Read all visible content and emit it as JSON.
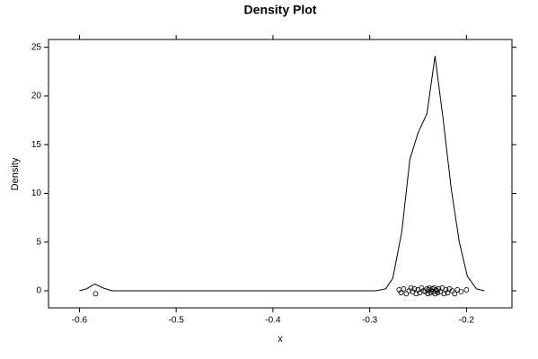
{
  "chart_data": {
    "type": "line",
    "title": "Density Plot",
    "x_label": "x",
    "y_label": "Density",
    "x": [
      -0.6,
      -0.5926,
      -0.5842,
      -0.5759,
      -0.5666,
      -0.2937,
      -0.2835,
      -0.2761,
      -0.2668,
      -0.2585,
      -0.2501,
      -0.2408,
      -0.2325,
      -0.2241,
      -0.2158,
      -0.2074,
      -0.1991,
      -0.1898,
      -0.1814
    ],
    "values": [
      0,
      0.2,
      0.7,
      0.3,
      0,
      0,
      0.2,
      1.3,
      6.1,
      13.5,
      16.2,
      18.2,
      24.1,
      17.6,
      10.5,
      5.0,
      1.5,
      0.2,
      0
    ],
    "color": "#000000",
    "points": {
      "type": "scatter",
      "x": [
        -0.5833,
        -0.2696,
        -0.2677,
        -0.265,
        -0.2622,
        -0.2594,
        -0.2575,
        -0.2557,
        -0.2538,
        -0.252,
        -0.2501,
        -0.2483,
        -0.2464,
        -0.2445,
        -0.2427,
        -0.2408,
        -0.2399,
        -0.239,
        -0.2381,
        -0.2371,
        -0.2362,
        -0.2353,
        -0.2343,
        -0.2334,
        -0.2325,
        -0.2316,
        -0.2306,
        -0.2297,
        -0.2288,
        -0.2269,
        -0.2251,
        -0.2232,
        -0.2213,
        -0.2195,
        -0.2176,
        -0.2148,
        -0.2121,
        -0.2093,
        -0.2056,
        -0.2
      ],
      "y": [
        -0.3,
        0.1,
        -0.2,
        0.2,
        -0.3,
        0.0,
        0.3,
        -0.1,
        0.2,
        -0.3,
        0.1,
        -0.2,
        0.3,
        0.0,
        -0.1,
        0.2,
        -0.3,
        0.1,
        0.3,
        -0.2,
        0.0,
        0.2,
        -0.1,
        0.3,
        -0.3,
        0.1,
        0.0,
        -0.2,
        0.2,
        -0.1,
        0.3,
        -0.3,
        0.1,
        -0.2,
        0.2,
        0.0,
        -0.3,
        0.1,
        -0.1,
        0.1
      ]
    },
    "xlim": [
      -0.632,
      -0.153
    ],
    "ylim": [
      -1.75,
      25.8
    ],
    "xticks": [
      -0.6,
      -0.5,
      -0.4,
      -0.3,
      -0.2
    ],
    "yticks": [
      0,
      5,
      10,
      15,
      20,
      25
    ]
  }
}
